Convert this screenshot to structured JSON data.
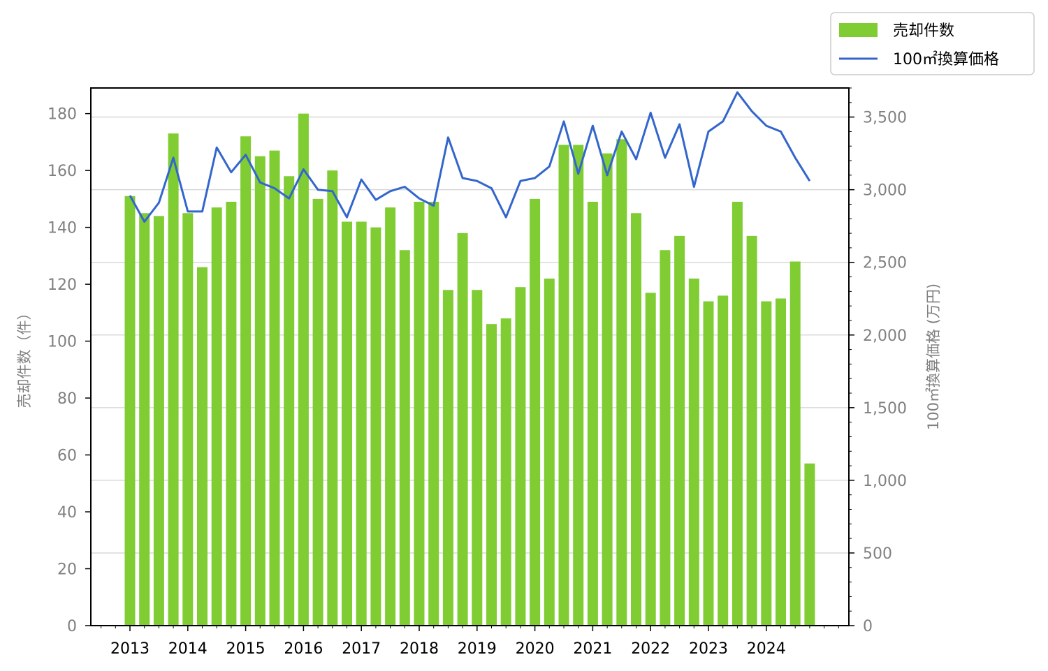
{
  "chart_data": {
    "type": "bar",
    "x_tick_labels": [
      "2013",
      "2014",
      "2015",
      "2016",
      "2017",
      "2018",
      "2019",
      "2020",
      "2021",
      "2022",
      "2023",
      "2024"
    ],
    "xlabel": "",
    "y_left": {
      "label": "売却件数（件）",
      "ylim": [
        0,
        189
      ],
      "ticks": [
        0,
        20,
        40,
        60,
        80,
        100,
        120,
        140,
        160,
        180
      ],
      "tick_labels": [
        "0",
        "20",
        "40",
        "60",
        "80",
        "100",
        "120",
        "140",
        "160",
        "180"
      ]
    },
    "y_right": {
      "label": "100㎡換算価格 (万円)",
      "ylim": [
        0,
        3700
      ],
      "ticks": [
        0,
        500,
        1000,
        1500,
        2000,
        2500,
        3000,
        3500
      ],
      "tick_labels": [
        "0",
        "500",
        "1,000",
        "1,500",
        "2,000",
        "2,500",
        "3,000",
        "3,500"
      ]
    },
    "grid": "horizontal, right axis",
    "legend_position": "top-right",
    "series": [
      {
        "name": "売却件数",
        "type": "bar",
        "axis": "left",
        "color": "#80cc33",
        "values": [
          151,
          145,
          144,
          173,
          145,
          126,
          147,
          149,
          172,
          165,
          167,
          158,
          180,
          150,
          160,
          142,
          142,
          140,
          147,
          132,
          149,
          149,
          118,
          138,
          118,
          106,
          108,
          119,
          150,
          122,
          169,
          169,
          149,
          166,
          171,
          145,
          117,
          132,
          137,
          122,
          114,
          116,
          149,
          137,
          114,
          115,
          128,
          57
        ]
      },
      {
        "name": "100㎡換算価格",
        "type": "line",
        "axis": "right",
        "color": "#3366cc",
        "values": [
          2960,
          2780,
          2910,
          3220,
          2850,
          2850,
          3290,
          3120,
          3240,
          3050,
          3010,
          2940,
          3140,
          3000,
          2990,
          2810,
          3070,
          2930,
          2990,
          3020,
          2940,
          2890,
          3360,
          3080,
          3060,
          3010,
          2810,
          3060,
          3080,
          3160,
          3470,
          3110,
          3440,
          3100,
          3400,
          3210,
          3530,
          3220,
          3450,
          3020,
          3400,
          3470,
          3670,
          3540,
          3440,
          3400,
          3220,
          3060
        ]
      }
    ]
  }
}
